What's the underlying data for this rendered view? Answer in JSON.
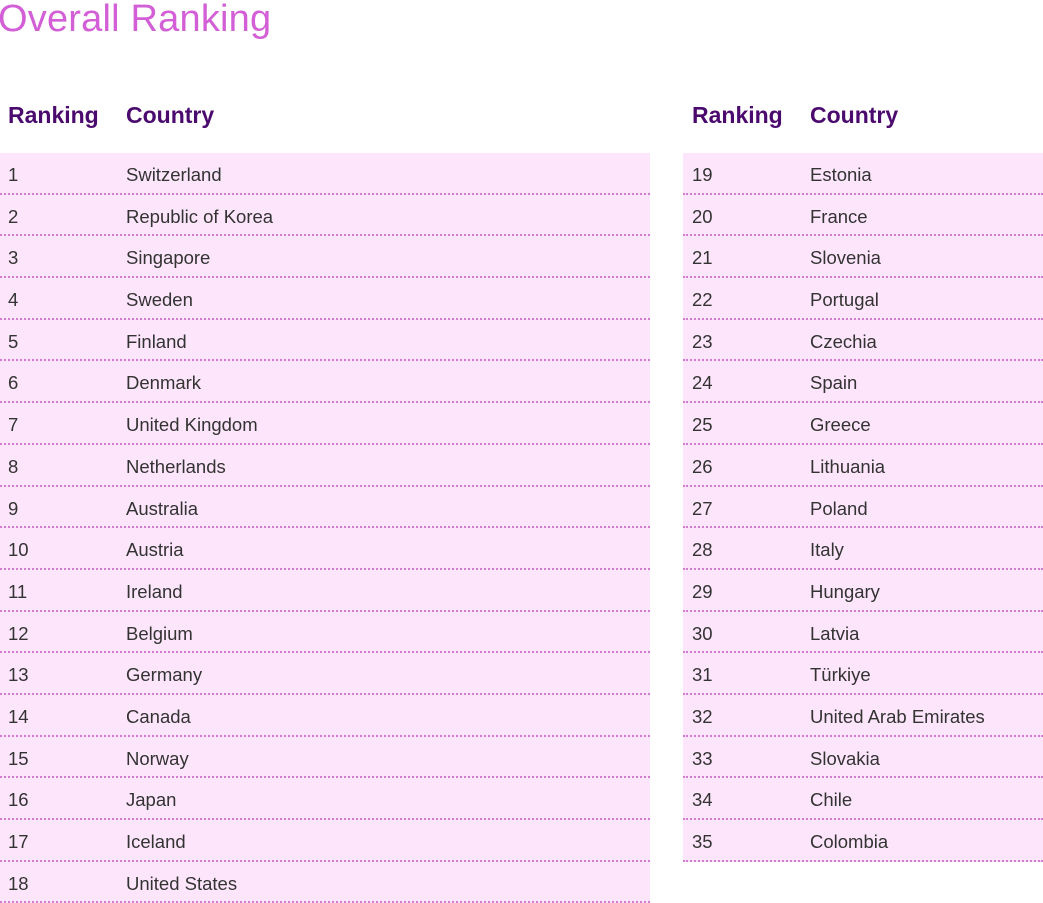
{
  "title": "Overall Ranking",
  "headers": {
    "ranking": "Ranking",
    "country": "Country"
  },
  "colors": {
    "title": "#d35fd6",
    "header": "#4b0a6e",
    "row_bg": "#fde6fb",
    "divider": "#d57ad6"
  },
  "left": [
    {
      "rank": "1",
      "country": "Switzerland"
    },
    {
      "rank": "2",
      "country": "Republic of Korea"
    },
    {
      "rank": "3",
      "country": "Singapore"
    },
    {
      "rank": "4",
      "country": "Sweden"
    },
    {
      "rank": "5",
      "country": "Finland"
    },
    {
      "rank": "6",
      "country": "Denmark"
    },
    {
      "rank": "7",
      "country": "United Kingdom"
    },
    {
      "rank": "8",
      "country": "Netherlands"
    },
    {
      "rank": "9",
      "country": "Australia"
    },
    {
      "rank": "10",
      "country": "Austria"
    },
    {
      "rank": "11",
      "country": "Ireland"
    },
    {
      "rank": "12",
      "country": "Belgium"
    },
    {
      "rank": "13",
      "country": "Germany"
    },
    {
      "rank": "14",
      "country": "Canada"
    },
    {
      "rank": "15",
      "country": "Norway"
    },
    {
      "rank": "16",
      "country": "Japan"
    },
    {
      "rank": "17",
      "country": "Iceland"
    },
    {
      "rank": "18",
      "country": "United States"
    }
  ],
  "right": [
    {
      "rank": "19",
      "country": "Estonia"
    },
    {
      "rank": "20",
      "country": "France"
    },
    {
      "rank": "21",
      "country": "Slovenia"
    },
    {
      "rank": "22",
      "country": "Portugal"
    },
    {
      "rank": "23",
      "country": "Czechia"
    },
    {
      "rank": "24",
      "country": "Spain"
    },
    {
      "rank": "25",
      "country": "Greece"
    },
    {
      "rank": "26",
      "country": "Lithuania"
    },
    {
      "rank": "27",
      "country": "Poland"
    },
    {
      "rank": "28",
      "country": "Italy"
    },
    {
      "rank": "29",
      "country": "Hungary"
    },
    {
      "rank": "30",
      "country": "Latvia"
    },
    {
      "rank": "31",
      "country": "Türkiye"
    },
    {
      "rank": "32",
      "country": "United Arab Emirates"
    },
    {
      "rank": "33",
      "country": "Slovakia"
    },
    {
      "rank": "34",
      "country": "Chile"
    },
    {
      "rank": "35",
      "country": "Colombia"
    }
  ]
}
